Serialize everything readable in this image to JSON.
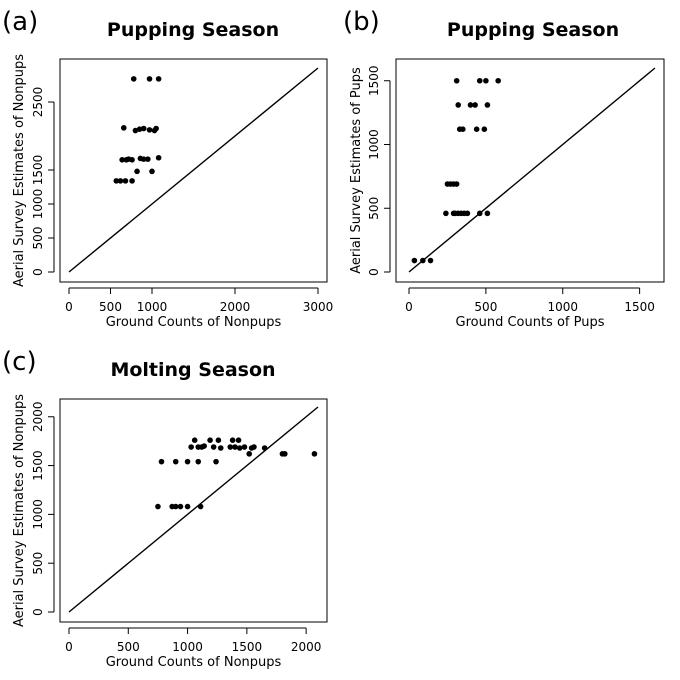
{
  "chart_data": [
    {
      "type": "scatter",
      "panel_letter": "(a)",
      "title": "Pupping Season",
      "xlabel": "Ground Counts of Nonpups",
      "ylabel": "Aerial Survey Estimates of Nonpups",
      "xlim": [
        0,
        3000
      ],
      "ylim": [
        0,
        3000
      ],
      "xticks": [
        0,
        500,
        1000,
        2000,
        3000
      ],
      "yticks": [
        0,
        500,
        1000,
        1500,
        2500
      ],
      "reference_line": "y = x",
      "points": [
        [
          570,
          1340
        ],
        [
          620,
          1340
        ],
        [
          680,
          1340
        ],
        [
          760,
          1340
        ],
        [
          640,
          1650
        ],
        [
          690,
          1650
        ],
        [
          720,
          1660
        ],
        [
          760,
          1650
        ],
        [
          820,
          1480
        ],
        [
          860,
          1670
        ],
        [
          900,
          1660
        ],
        [
          950,
          1660
        ],
        [
          1000,
          1480
        ],
        [
          1080,
          1680
        ],
        [
          800,
          2080
        ],
        [
          850,
          2100
        ],
        [
          900,
          2110
        ],
        [
          970,
          2090
        ],
        [
          1030,
          2080
        ],
        [
          1050,
          2110
        ],
        [
          660,
          2120
        ],
        [
          780,
          2840
        ],
        [
          970,
          2840
        ],
        [
          1080,
          2840
        ]
      ]
    },
    {
      "type": "scatter",
      "panel_letter": "(b)",
      "title": "Pupping Season",
      "xlabel": "Ground Counts of Pups",
      "ylabel": "Aerial Survey Estimates of Pups",
      "xlim": [
        0,
        1600
      ],
      "ylim": [
        0,
        1600
      ],
      "xticks": [
        0,
        500,
        1000,
        1500
      ],
      "yticks": [
        0,
        500,
        1000,
        1500
      ],
      "reference_line": "y = x",
      "points": [
        [
          35,
          90
        ],
        [
          90,
          90
        ],
        [
          140,
          90
        ],
        [
          240,
          460
        ],
        [
          290,
          460
        ],
        [
          300,
          460
        ],
        [
          320,
          460
        ],
        [
          340,
          460
        ],
        [
          360,
          460
        ],
        [
          380,
          460
        ],
        [
          460,
          460
        ],
        [
          510,
          460
        ],
        [
          250,
          690
        ],
        [
          270,
          690
        ],
        [
          290,
          690
        ],
        [
          310,
          690
        ],
        [
          330,
          1120
        ],
        [
          350,
          1120
        ],
        [
          440,
          1120
        ],
        [
          490,
          1120
        ],
        [
          320,
          1310
        ],
        [
          400,
          1310
        ],
        [
          430,
          1310
        ],
        [
          510,
          1310
        ],
        [
          310,
          1500
        ],
        [
          460,
          1500
        ],
        [
          500,
          1500
        ],
        [
          580,
          1500
        ]
      ]
    },
    {
      "type": "scatter",
      "panel_letter": "(c)",
      "title": "Molting Season",
      "xlabel": "Ground Counts of Nonpups",
      "ylabel": "Aerial Survey Estimates of Nonpups",
      "xlim": [
        0,
        2100
      ],
      "ylim": [
        0,
        2100
      ],
      "xticks": [
        0,
        500,
        1000,
        1500,
        2000
      ],
      "yticks": [
        0,
        500,
        1000,
        1500,
        2000
      ],
      "reference_line": "y = x",
      "points": [
        [
          750,
          1080
        ],
        [
          870,
          1080
        ],
        [
          900,
          1080
        ],
        [
          940,
          1080
        ],
        [
          1000,
          1080
        ],
        [
          1110,
          1080
        ],
        [
          780,
          1540
        ],
        [
          900,
          1540
        ],
        [
          1000,
          1540
        ],
        [
          1090,
          1540
        ],
        [
          1240,
          1540
        ],
        [
          1030,
          1690
        ],
        [
          1060,
          1760
        ],
        [
          1090,
          1690
        ],
        [
          1120,
          1690
        ],
        [
          1140,
          1700
        ],
        [
          1190,
          1760
        ],
        [
          1220,
          1690
        ],
        [
          1260,
          1760
        ],
        [
          1280,
          1680
        ],
        [
          1360,
          1690
        ],
        [
          1380,
          1760
        ],
        [
          1400,
          1690
        ],
        [
          1430,
          1760
        ],
        [
          1440,
          1680
        ],
        [
          1480,
          1690
        ],
        [
          1520,
          1620
        ],
        [
          1540,
          1680
        ],
        [
          1560,
          1690
        ],
        [
          1650,
          1680
        ],
        [
          1800,
          1620
        ],
        [
          1820,
          1620
        ],
        [
          2070,
          1620
        ]
      ]
    }
  ]
}
